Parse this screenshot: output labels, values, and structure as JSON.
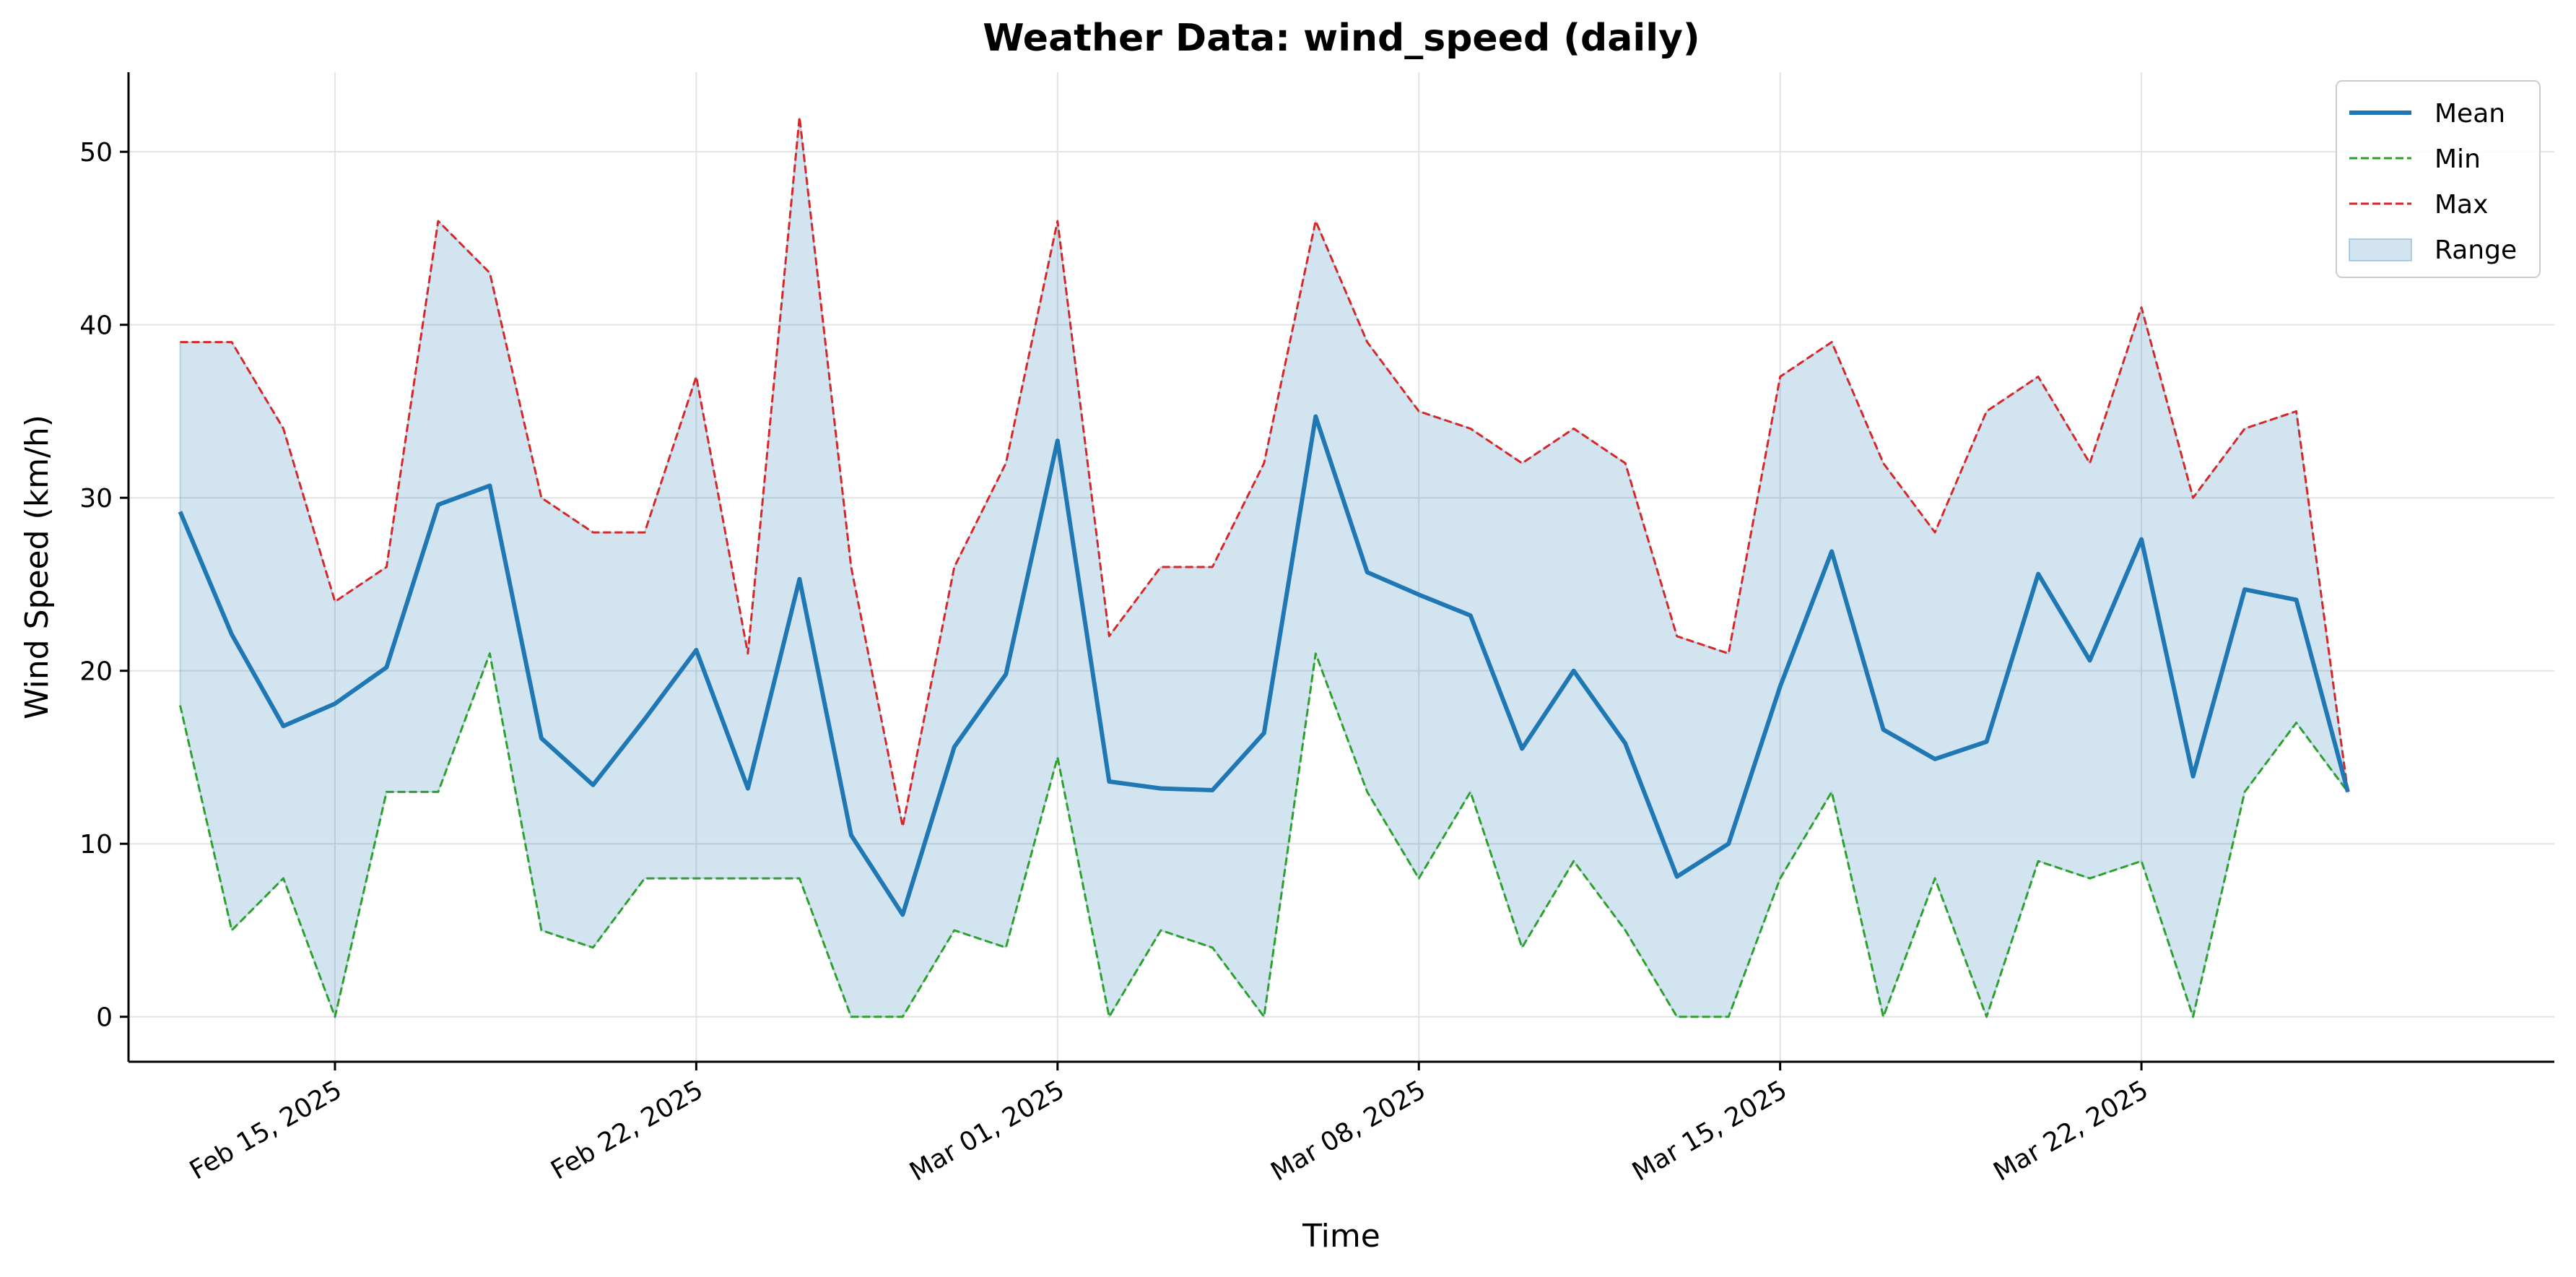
{
  "chart_data": {
    "type": "line",
    "title": "Weather Data: wind_speed (daily)",
    "xlabel": "Time",
    "ylabel": "Wind Speed (km/h)",
    "x_tick_labels": [
      "Feb 15, 2025",
      "Feb 22, 2025",
      "Mar 01, 2025",
      "Mar 08, 2025",
      "Mar 15, 2025",
      "Mar 22, 2025"
    ],
    "x_ticks": [
      "2025-02-15",
      "2025-02-22",
      "2025-03-01",
      "2025-03-08",
      "2025-03-15",
      "2025-03-22"
    ],
    "xlim": [
      "2025-02-11",
      "2025-03-30"
    ],
    "y_ticks": [
      0,
      10,
      20,
      30,
      40,
      50
    ],
    "ylim": [
      -2.6,
      54.6
    ],
    "grid": true,
    "legend_position": "top-right",
    "x": [
      "2025-02-12",
      "2025-02-13",
      "2025-02-14",
      "2025-02-15",
      "2025-02-16",
      "2025-02-17",
      "2025-02-18",
      "2025-02-19",
      "2025-02-20",
      "2025-02-21",
      "2025-02-22",
      "2025-02-23",
      "2025-02-24",
      "2025-02-25",
      "2025-02-26",
      "2025-02-27",
      "2025-02-28",
      "2025-03-01",
      "2025-03-02",
      "2025-03-03",
      "2025-03-04",
      "2025-03-05",
      "2025-03-06",
      "2025-03-07",
      "2025-03-08",
      "2025-03-09",
      "2025-03-10",
      "2025-03-11",
      "2025-03-12",
      "2025-03-13",
      "2025-03-14",
      "2025-03-15",
      "2025-03-16",
      "2025-03-17",
      "2025-03-18",
      "2025-03-19",
      "2025-03-20",
      "2025-03-21",
      "2025-03-22",
      "2025-03-23",
      "2025-03-24",
      "2025-03-25",
      "2025-03-26"
    ],
    "series": [
      {
        "name": "Mean",
        "color": "#1f77b4",
        "style": "solid",
        "values": [
          29.2,
          22.1,
          16.8,
          18.1,
          20.2,
          29.6,
          30.7,
          16.1,
          13.4,
          17.2,
          21.2,
          13.2,
          25.3,
          10.5,
          5.9,
          15.6,
          19.8,
          33.3,
          13.6,
          13.2,
          13.1,
          16.4,
          34.7,
          25.7,
          24.4,
          23.2,
          15.5,
          20.0,
          15.8,
          8.1,
          10.0,
          19.1,
          26.9,
          16.6,
          14.9,
          15.9,
          25.6,
          20.6,
          27.6,
          13.9,
          24.7,
          24.1,
          13.0
        ]
      },
      {
        "name": "Min",
        "color": "#2ca02c",
        "style": "dashed",
        "values": [
          18,
          5,
          8,
          0,
          13,
          13,
          21,
          5,
          4,
          8,
          8,
          8,
          8,
          0,
          0,
          5,
          4,
          15,
          0,
          5,
          4,
          0,
          21,
          13,
          8,
          13,
          4,
          9,
          5,
          0,
          0,
          8,
          13,
          0,
          8,
          0,
          9,
          8,
          9,
          0,
          13,
          17,
          13
        ]
      },
      {
        "name": "Max",
        "color": "#d62728",
        "style": "dashed",
        "values": [
          39,
          39,
          34,
          24,
          26,
          46,
          43,
          30,
          28,
          28,
          37,
          21,
          52,
          26,
          11,
          26,
          32,
          46,
          22,
          26,
          26,
          32,
          46,
          39,
          35,
          34,
          32,
          34,
          32,
          22,
          21,
          37,
          39,
          32,
          28,
          35,
          37,
          32,
          41,
          30,
          34,
          35,
          13
        ]
      }
    ],
    "range_band": {
      "name": "Range",
      "color": "#1f77b4",
      "opacity": 0.2
    }
  }
}
